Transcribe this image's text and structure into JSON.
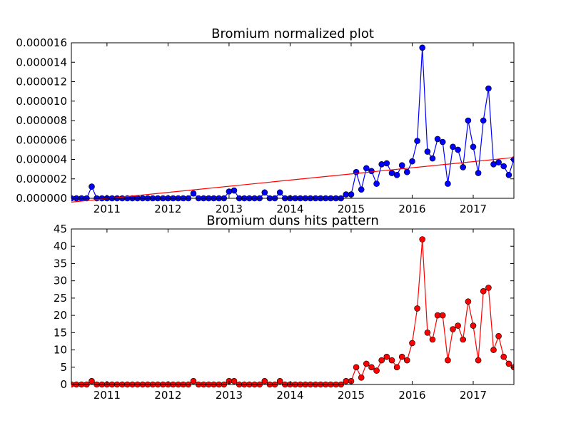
{
  "chart_data": [
    {
      "type": "line",
      "title": "Bromium normalized plot",
      "xlabel": "",
      "ylabel": "",
      "xlim": [
        "2010-06",
        "2017-09"
      ],
      "ylim": [
        0,
        1.6e-05
      ],
      "x_ticks": [
        "2011",
        "2012",
        "2013",
        "2014",
        "2015",
        "2016",
        "2017"
      ],
      "y_ticks": [
        "0.000000",
        "0.000002",
        "0.000004",
        "0.000006",
        "0.000008",
        "0.000010",
        "0.000012",
        "0.000014",
        "0.000016"
      ],
      "grid": false,
      "legend": "none",
      "series": [
        {
          "color": "#0000ff",
          "marker": "circle",
          "x": [
            "2010-06",
            "2010-07",
            "2010-08",
            "2010-09",
            "2010-10",
            "2010-11",
            "2010-12",
            "2011-01",
            "2011-02",
            "2011-03",
            "2011-04",
            "2011-05",
            "2011-06",
            "2011-07",
            "2011-08",
            "2011-09",
            "2011-10",
            "2011-11",
            "2011-12",
            "2012-01",
            "2012-02",
            "2012-03",
            "2012-04",
            "2012-05",
            "2012-06",
            "2012-07",
            "2012-08",
            "2012-09",
            "2012-10",
            "2012-11",
            "2012-12",
            "2013-01",
            "2013-02",
            "2013-03",
            "2013-04",
            "2013-05",
            "2013-06",
            "2013-07",
            "2013-08",
            "2013-09",
            "2013-10",
            "2013-11",
            "2013-12",
            "2014-01",
            "2014-02",
            "2014-03",
            "2014-04",
            "2014-05",
            "2014-06",
            "2014-07",
            "2014-08",
            "2014-09",
            "2014-10",
            "2014-11",
            "2014-12",
            "2015-01",
            "2015-02",
            "2015-03",
            "2015-04",
            "2015-05",
            "2015-06",
            "2015-07",
            "2015-08",
            "2015-09",
            "2015-10",
            "2015-11",
            "2015-12",
            "2016-01",
            "2016-02",
            "2016-03",
            "2016-04",
            "2016-05",
            "2016-06",
            "2016-07",
            "2016-08",
            "2016-09",
            "2016-10",
            "2016-11",
            "2016-12",
            "2017-01",
            "2017-02",
            "2017-03",
            "2017-04",
            "2017-05",
            "2017-06",
            "2017-07",
            "2017-08",
            "2017-09"
          ],
          "y": [
            0,
            0,
            0,
            0,
            1.2e-06,
            0,
            0,
            0,
            0,
            0,
            0,
            0,
            0,
            0,
            0,
            0,
            0,
            0,
            0,
            0,
            0,
            0,
            0,
            0,
            5e-07,
            0,
            0,
            0,
            0,
            0,
            0,
            7e-07,
            8e-07,
            0,
            0,
            0,
            0,
            0,
            6e-07,
            0,
            0,
            6e-07,
            0,
            0,
            0,
            0,
            0,
            0,
            0,
            0,
            0,
            0,
            0,
            0,
            4e-07,
            4e-07,
            2.7e-06,
            9e-07,
            3.1e-06,
            2.8e-06,
            1.5e-06,
            3.5e-06,
            3.6e-06,
            2.6e-06,
            2.4e-06,
            3.4e-06,
            2.7e-06,
            3.8e-06,
            5.9e-06,
            1.55e-05,
            4.8e-06,
            4.1e-06,
            6.1e-06,
            5.8e-06,
            1.5e-06,
            5.3e-06,
            5e-06,
            3.2e-06,
            8e-06,
            5.3e-06,
            2.6e-06,
            8e-06,
            1.13e-05,
            3.5e-06,
            3.7e-06,
            3.3e-06,
            2.4e-06,
            4e-06
          ]
        },
        {
          "color": "#ff0000",
          "marker": "none",
          "x": [
            "2010-06",
            "2017-09"
          ],
          "y": [
            -4e-07,
            4.2e-06
          ]
        }
      ]
    },
    {
      "type": "line",
      "title": "Bromium duns hits pattern",
      "xlabel": "",
      "ylabel": "",
      "xlim": [
        "2010-06",
        "2017-09"
      ],
      "ylim": [
        0,
        45
      ],
      "x_ticks": [
        "2011",
        "2012",
        "2013",
        "2014",
        "2015",
        "2016",
        "2017"
      ],
      "y_ticks": [
        "0",
        "5",
        "10",
        "15",
        "20",
        "25",
        "30",
        "35",
        "40",
        "45"
      ],
      "grid": false,
      "legend": "none",
      "series": [
        {
          "color": "#ff0000",
          "marker": "circle",
          "x": [
            "2010-06",
            "2010-07",
            "2010-08",
            "2010-09",
            "2010-10",
            "2010-11",
            "2010-12",
            "2011-01",
            "2011-02",
            "2011-03",
            "2011-04",
            "2011-05",
            "2011-06",
            "2011-07",
            "2011-08",
            "2011-09",
            "2011-10",
            "2011-11",
            "2011-12",
            "2012-01",
            "2012-02",
            "2012-03",
            "2012-04",
            "2012-05",
            "2012-06",
            "2012-07",
            "2012-08",
            "2012-09",
            "2012-10",
            "2012-11",
            "2012-12",
            "2013-01",
            "2013-02",
            "2013-03",
            "2013-04",
            "2013-05",
            "2013-06",
            "2013-07",
            "2013-08",
            "2013-09",
            "2013-10",
            "2013-11",
            "2013-12",
            "2014-01",
            "2014-02",
            "2014-03",
            "2014-04",
            "2014-05",
            "2014-06",
            "2014-07",
            "2014-08",
            "2014-09",
            "2014-10",
            "2014-11",
            "2014-12",
            "2015-01",
            "2015-02",
            "2015-03",
            "2015-04",
            "2015-05",
            "2015-06",
            "2015-07",
            "2015-08",
            "2015-09",
            "2015-10",
            "2015-11",
            "2015-12",
            "2016-01",
            "2016-02",
            "2016-03",
            "2016-04",
            "2016-05",
            "2016-06",
            "2016-07",
            "2016-08",
            "2016-09",
            "2016-10",
            "2016-11",
            "2016-12",
            "2017-01",
            "2017-02",
            "2017-03",
            "2017-04",
            "2017-05",
            "2017-06",
            "2017-07",
            "2017-08",
            "2017-09"
          ],
          "y": [
            0,
            0,
            0,
            0,
            1,
            0,
            0,
            0,
            0,
            0,
            0,
            0,
            0,
            0,
            0,
            0,
            0,
            0,
            0,
            0,
            0,
            0,
            0,
            0,
            1,
            0,
            0,
            0,
            0,
            0,
            0,
            1,
            1,
            0,
            0,
            0,
            0,
            0,
            1,
            0,
            0,
            1,
            0,
            0,
            0,
            0,
            0,
            0,
            0,
            0,
            0,
            0,
            0,
            0,
            1,
            1,
            5,
            2,
            6,
            5,
            4,
            7,
            8,
            7,
            5,
            8,
            7,
            12,
            22,
            42,
            15,
            13,
            20,
            20,
            7,
            16,
            17,
            13,
            24,
            17,
            7,
            27,
            28,
            10,
            14,
            8,
            6,
            5
          ]
        }
      ]
    }
  ]
}
